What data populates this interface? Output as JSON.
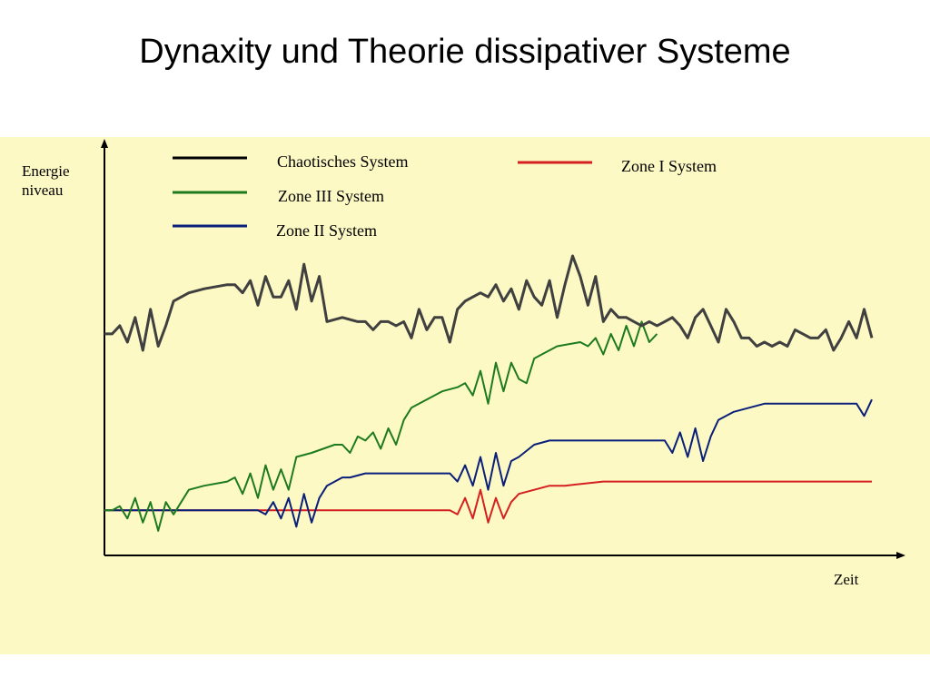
{
  "slide": {
    "title": "Dynaxity und Theorie dissipativer Systeme"
  },
  "chart_data": {
    "type": "line",
    "ylabel_lines": [
      "Energie",
      "niveau"
    ],
    "xlabel": "Zeit",
    "xlim": [
      0,
      100
    ],
    "ylim": [
      0,
      100
    ],
    "grid": false,
    "legend_position": "top",
    "series": [
      {
        "key": "chaotic",
        "name": "Chaotisches System",
        "color": "#404040",
        "points": [
          [
            0,
            54
          ],
          [
            1,
            54
          ],
          [
            2,
            56
          ],
          [
            3,
            52
          ],
          [
            4,
            58
          ],
          [
            5,
            50
          ],
          [
            6,
            60
          ],
          [
            7,
            51
          ],
          [
            8,
            56
          ],
          [
            9,
            62
          ],
          [
            11,
            64
          ],
          [
            13,
            65
          ],
          [
            16,
            66
          ],
          [
            17,
            66
          ],
          [
            18,
            64
          ],
          [
            19,
            67
          ],
          [
            20,
            61
          ],
          [
            21,
            68
          ],
          [
            22,
            63
          ],
          [
            23,
            63
          ],
          [
            24,
            67
          ],
          [
            25,
            60
          ],
          [
            26,
            71
          ],
          [
            27,
            62
          ],
          [
            28,
            68
          ],
          [
            29,
            57
          ],
          [
            31,
            58
          ],
          [
            33,
            57
          ],
          [
            34,
            57
          ],
          [
            35,
            55
          ],
          [
            36,
            57
          ],
          [
            37,
            57
          ],
          [
            38,
            56
          ],
          [
            39,
            57
          ],
          [
            40,
            53
          ],
          [
            41,
            60
          ],
          [
            42,
            55
          ],
          [
            43,
            58
          ],
          [
            44,
            58
          ],
          [
            45,
            52
          ],
          [
            46,
            60
          ],
          [
            47,
            62
          ],
          [
            48,
            63
          ],
          [
            49,
            64
          ],
          [
            50,
            63
          ],
          [
            51,
            66
          ],
          [
            52,
            62
          ],
          [
            53,
            65
          ],
          [
            54,
            60
          ],
          [
            55,
            67
          ],
          [
            56,
            63
          ],
          [
            57,
            61
          ],
          [
            58,
            67
          ],
          [
            59,
            58
          ],
          [
            60,
            66
          ],
          [
            61,
            73
          ],
          [
            62,
            68
          ],
          [
            63,
            61
          ],
          [
            64,
            68
          ],
          [
            65,
            57
          ],
          [
            66,
            60
          ],
          [
            67,
            58
          ],
          [
            68,
            58
          ],
          [
            69,
            57
          ],
          [
            70,
            56
          ],
          [
            71,
            57
          ],
          [
            72,
            56
          ],
          [
            73,
            57
          ],
          [
            74,
            58
          ],
          [
            75,
            56
          ],
          [
            76,
            53
          ],
          [
            77,
            58
          ],
          [
            78,
            60
          ],
          [
            79,
            56
          ],
          [
            80,
            52
          ],
          [
            81,
            60
          ],
          [
            82,
            57
          ],
          [
            83,
            53
          ],
          [
            84,
            53
          ],
          [
            85,
            51
          ],
          [
            86,
            52
          ],
          [
            87,
            51
          ],
          [
            88,
            52
          ],
          [
            89,
            51
          ],
          [
            90,
            55
          ],
          [
            91,
            54
          ],
          [
            92,
            53
          ],
          [
            93,
            53
          ],
          [
            94,
            55
          ],
          [
            95,
            50
          ],
          [
            96,
            53
          ],
          [
            97,
            57
          ],
          [
            98,
            53
          ],
          [
            99,
            60
          ],
          [
            100,
            53
          ]
        ]
      },
      {
        "key": "zone3",
        "name": "Zone III System",
        "color": "#1e7a1e",
        "points": [
          [
            0,
            11
          ],
          [
            1,
            11
          ],
          [
            2,
            12
          ],
          [
            3,
            9
          ],
          [
            4,
            14
          ],
          [
            5,
            8
          ],
          [
            6,
            13
          ],
          [
            7,
            6
          ],
          [
            8,
            13
          ],
          [
            9,
            10
          ],
          [
            11,
            16
          ],
          [
            13,
            17
          ],
          [
            16,
            18
          ],
          [
            17,
            19
          ],
          [
            18,
            15
          ],
          [
            19,
            20
          ],
          [
            20,
            14
          ],
          [
            21,
            22
          ],
          [
            22,
            16
          ],
          [
            23,
            21
          ],
          [
            24,
            16
          ],
          [
            25,
            24
          ],
          [
            27,
            25
          ],
          [
            30,
            27
          ],
          [
            31,
            27
          ],
          [
            32,
            25
          ],
          [
            33,
            29
          ],
          [
            34,
            28
          ],
          [
            35,
            30
          ],
          [
            36,
            26
          ],
          [
            37,
            31
          ],
          [
            38,
            27
          ],
          [
            39,
            33
          ],
          [
            40,
            36
          ],
          [
            42,
            38
          ],
          [
            44,
            40
          ],
          [
            46,
            41
          ],
          [
            47,
            42
          ],
          [
            48,
            39
          ],
          [
            49,
            45
          ],
          [
            50,
            37
          ],
          [
            51,
            47
          ],
          [
            52,
            40
          ],
          [
            53,
            47
          ],
          [
            54,
            43
          ],
          [
            55,
            42
          ],
          [
            56,
            48
          ],
          [
            57,
            49
          ],
          [
            59,
            51
          ],
          [
            62,
            52
          ],
          [
            63,
            51
          ],
          [
            64,
            53
          ],
          [
            65,
            49
          ],
          [
            66,
            54
          ],
          [
            67,
            50
          ],
          [
            68,
            56
          ],
          [
            69,
            51
          ],
          [
            70,
            57
          ],
          [
            71,
            52
          ],
          [
            72,
            54
          ]
        ]
      },
      {
        "key": "zone2",
        "name": "Zone II System",
        "color": "#0a1f7a",
        "points": [
          [
            0,
            11
          ],
          [
            1,
            11
          ],
          [
            5,
            11
          ],
          [
            10,
            11
          ],
          [
            15,
            11
          ],
          [
            18,
            11
          ],
          [
            20,
            11
          ],
          [
            21,
            10
          ],
          [
            22,
            13
          ],
          [
            23,
            9
          ],
          [
            24,
            14
          ],
          [
            25,
            7
          ],
          [
            26,
            15
          ],
          [
            27,
            8
          ],
          [
            28,
            14
          ],
          [
            29,
            17
          ],
          [
            31,
            19
          ],
          [
            32,
            19
          ],
          [
            34,
            20
          ],
          [
            38,
            20
          ],
          [
            42,
            20
          ],
          [
            43,
            20
          ],
          [
            45,
            20
          ],
          [
            46,
            18
          ],
          [
            47,
            22
          ],
          [
            48,
            17
          ],
          [
            49,
            24
          ],
          [
            50,
            16
          ],
          [
            51,
            25
          ],
          [
            52,
            17
          ],
          [
            53,
            23
          ],
          [
            54,
            24
          ],
          [
            56,
            27
          ],
          [
            58,
            28
          ],
          [
            60,
            28
          ],
          [
            64,
            28
          ],
          [
            68,
            28
          ],
          [
            72,
            28
          ],
          [
            73,
            28
          ],
          [
            74,
            25
          ],
          [
            75,
            30
          ],
          [
            76,
            24
          ],
          [
            77,
            31
          ],
          [
            78,
            23
          ],
          [
            79,
            29
          ],
          [
            80,
            33
          ],
          [
            82,
            35
          ],
          [
            84,
            36
          ],
          [
            86,
            37
          ],
          [
            88,
            37
          ],
          [
            92,
            37
          ],
          [
            97,
            37
          ],
          [
            98,
            37
          ],
          [
            99,
            34
          ],
          [
            100,
            38
          ]
        ]
      },
      {
        "key": "zone1",
        "name": "Zone I System",
        "color": "#d42020",
        "points": [
          [
            0,
            11
          ],
          [
            5,
            11
          ],
          [
            10,
            11
          ],
          [
            15,
            11
          ],
          [
            20,
            11
          ],
          [
            25,
            11
          ],
          [
            30,
            11
          ],
          [
            35,
            11
          ],
          [
            40,
            11
          ],
          [
            41,
            11
          ],
          [
            42,
            11
          ],
          [
            43,
            11
          ],
          [
            44,
            11
          ],
          [
            45,
            11
          ],
          [
            46,
            10
          ],
          [
            47,
            14
          ],
          [
            48,
            9
          ],
          [
            49,
            16
          ],
          [
            50,
            8
          ],
          [
            51,
            14
          ],
          [
            52,
            9
          ],
          [
            53,
            13
          ],
          [
            54,
            15
          ],
          [
            56,
            16
          ],
          [
            58,
            17
          ],
          [
            60,
            17
          ],
          [
            65,
            18
          ],
          [
            70,
            18
          ],
          [
            75,
            18
          ],
          [
            80,
            18
          ],
          [
            85,
            18
          ],
          [
            90,
            18
          ],
          [
            95,
            18
          ],
          [
            100,
            18
          ]
        ]
      }
    ]
  }
}
